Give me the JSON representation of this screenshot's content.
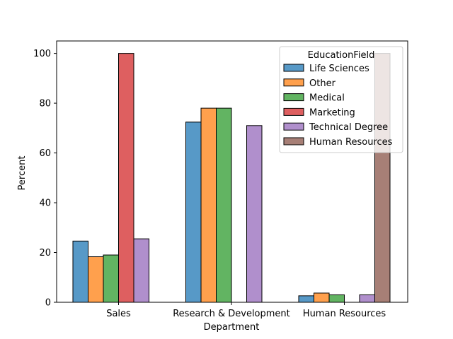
{
  "chart_data": {
    "type": "bar",
    "title": "",
    "xlabel": "Department",
    "ylabel": "Percent",
    "ylim": [
      0,
      105
    ],
    "yticks": [
      0,
      20,
      40,
      60,
      80,
      100
    ],
    "categories": [
      "Sales",
      "Research & Development",
      "Human Resources"
    ],
    "grid": false,
    "legend": {
      "title": "EducationField",
      "placement": "top-right"
    },
    "series": [
      {
        "name": "Life Sciences",
        "color": "#5799c7",
        "values": [
          24.6,
          72.4,
          2.6
        ]
      },
      {
        "name": "Other",
        "color": "#ffa04d",
        "values": [
          18.3,
          78.0,
          3.7
        ]
      },
      {
        "name": "Medical",
        "color": "#62b462",
        "values": [
          19.0,
          78.0,
          3.0
        ]
      },
      {
        "name": "Marketing",
        "color": "#de5f60",
        "values": [
          100,
          0,
          0
        ]
      },
      {
        "name": "Technical Degree",
        "color": "#b08fcc",
        "values": [
          25.5,
          71.0,
          3.0
        ]
      },
      {
        "name": "Human Resources",
        "color": "#a77f76",
        "values": [
          0,
          0,
          100
        ]
      }
    ]
  }
}
